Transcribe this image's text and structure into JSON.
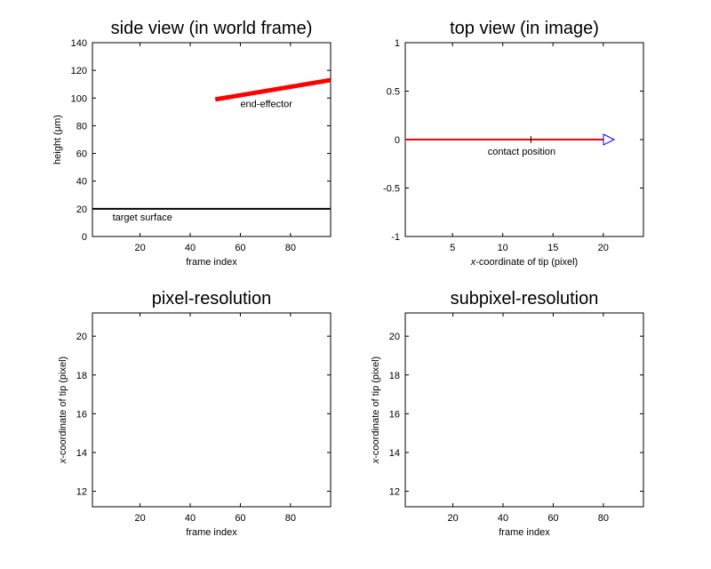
{
  "chart_data": [
    {
      "id": "side",
      "type": "line",
      "title": "side view (in world frame)",
      "xlabel": "frame index",
      "ylabel": "height (μm)",
      "xlim": [
        1,
        96
      ],
      "ylim": [
        0,
        140
      ],
      "xticks": [
        20,
        40,
        60,
        80
      ],
      "yticks": [
        0,
        20,
        40,
        60,
        80,
        100,
        120,
        140
      ],
      "series": [
        {
          "key": "surface",
          "x": [
            1,
            96
          ],
          "y": [
            20,
            20
          ],
          "color": "#000000",
          "width": 2
        },
        {
          "key": "effector",
          "x": [
            50,
            96
          ],
          "y": [
            99,
            113
          ],
          "color": "#ff0000",
          "width": 5
        }
      ],
      "annotations": [
        {
          "key": "surface_label",
          "text": "target surface",
          "x": 9,
          "y": 14
        },
        {
          "key": "effector_label",
          "text": "end-effector",
          "x": 60,
          "y": 96
        }
      ]
    },
    {
      "id": "top",
      "type": "line",
      "title": "top view (in image)",
      "xlabel": "x-coordinate of tip (pixel)",
      "xlabel_italic": "x",
      "xlabel_rest": "-coordinate of tip (pixel)",
      "ylabel": "",
      "xlim": [
        0.3,
        24
      ],
      "ylim": [
        -1,
        1
      ],
      "xticks": [
        5,
        10,
        15,
        20
      ],
      "yticks": [
        -1,
        -0.5,
        0,
        0.5,
        1
      ],
      "series": [
        {
          "key": "line",
          "x": [
            0.3,
            20
          ],
          "y": [
            0,
            0
          ],
          "color": "#ff0000",
          "width": 2
        }
      ],
      "markers": [
        {
          "key": "contact",
          "shape": "vtick",
          "x": 12.8,
          "y": 0,
          "color": "#000000"
        },
        {
          "key": "tip",
          "shape": "triangle-right",
          "x": 20.2,
          "y": 0,
          "color": "#0000ff"
        }
      ],
      "annotations": [
        {
          "key": "contact_label",
          "text": "contact position",
          "x": 8.5,
          "y": -0.12
        }
      ]
    },
    {
      "id": "pixel",
      "type": "line",
      "title": "pixel-resolution",
      "xlabel": "frame index",
      "ylabel": "x-coordinate of tip (pixel)",
      "ylabel_italic": "x",
      "ylabel_rest": "-coordinate of tip (pixel)",
      "xlim": [
        1,
        96
      ],
      "ylim": [
        11.2,
        21.2
      ],
      "xticks": [
        20,
        40,
        60,
        80
      ],
      "yticks": [
        12,
        14,
        16,
        18,
        20
      ],
      "series": []
    },
    {
      "id": "subpixel",
      "type": "line",
      "title": "subpixel-resolution",
      "xlabel": "frame index",
      "ylabel": "x-coordinate of tip (pixel)",
      "ylabel_italic": "x",
      "ylabel_rest": "-coordinate of tip (pixel)",
      "xlim": [
        1,
        96
      ],
      "ylim": [
        11.2,
        21.2
      ],
      "xticks": [
        20,
        40,
        60,
        80
      ],
      "yticks": [
        12,
        14,
        16,
        18,
        20
      ],
      "series": []
    }
  ]
}
